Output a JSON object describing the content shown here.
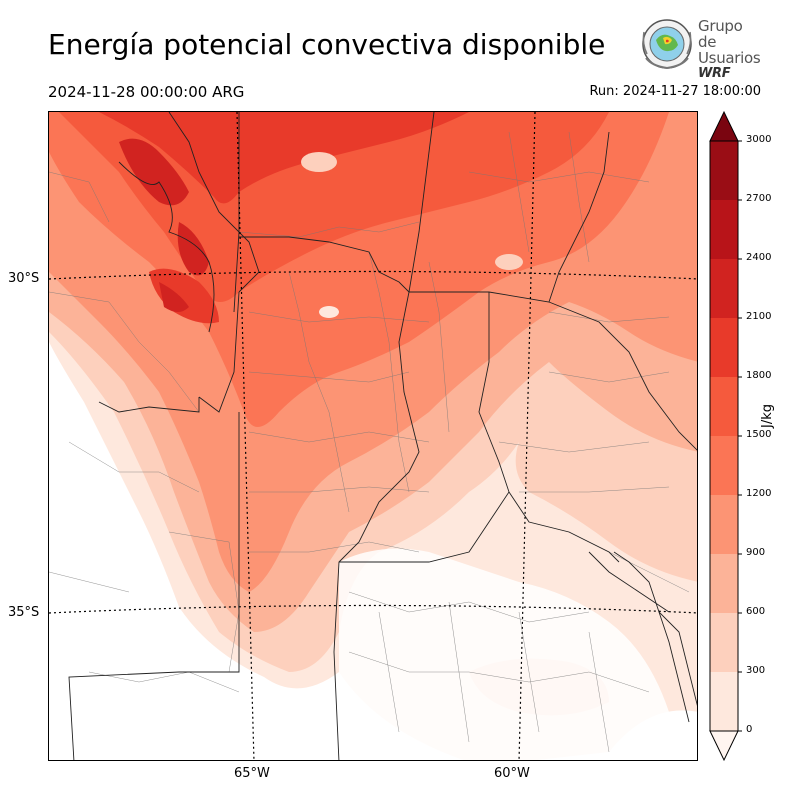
{
  "header": {
    "title": "Energía potencial convectiva disponible",
    "valid_time": "2024-11-28 00:00:00 ARG",
    "run_time": "Run: 2024-11-27 18:00:00"
  },
  "logo": {
    "line1": "Grupo de",
    "line2": "Usuarios",
    "line3": "WRF"
  },
  "map": {
    "lat_labels": [
      "30°S",
      "35°S"
    ],
    "lon_labels": [
      "65°W",
      "60°W"
    ]
  },
  "colorbar": {
    "unit": "J/kg",
    "ticks": [
      "0",
      "300",
      "600",
      "900",
      "1200",
      "1500",
      "1800",
      "2100",
      "2400",
      "2700",
      "3000"
    ],
    "colors": [
      "#fee8dd",
      "#fdd0bd",
      "#fcb398",
      "#fc9474",
      "#fb7555",
      "#f55a3d",
      "#e83a2a",
      "#d12320",
      "#b81419",
      "#9a0d15",
      "#7a0510"
    ]
  }
}
